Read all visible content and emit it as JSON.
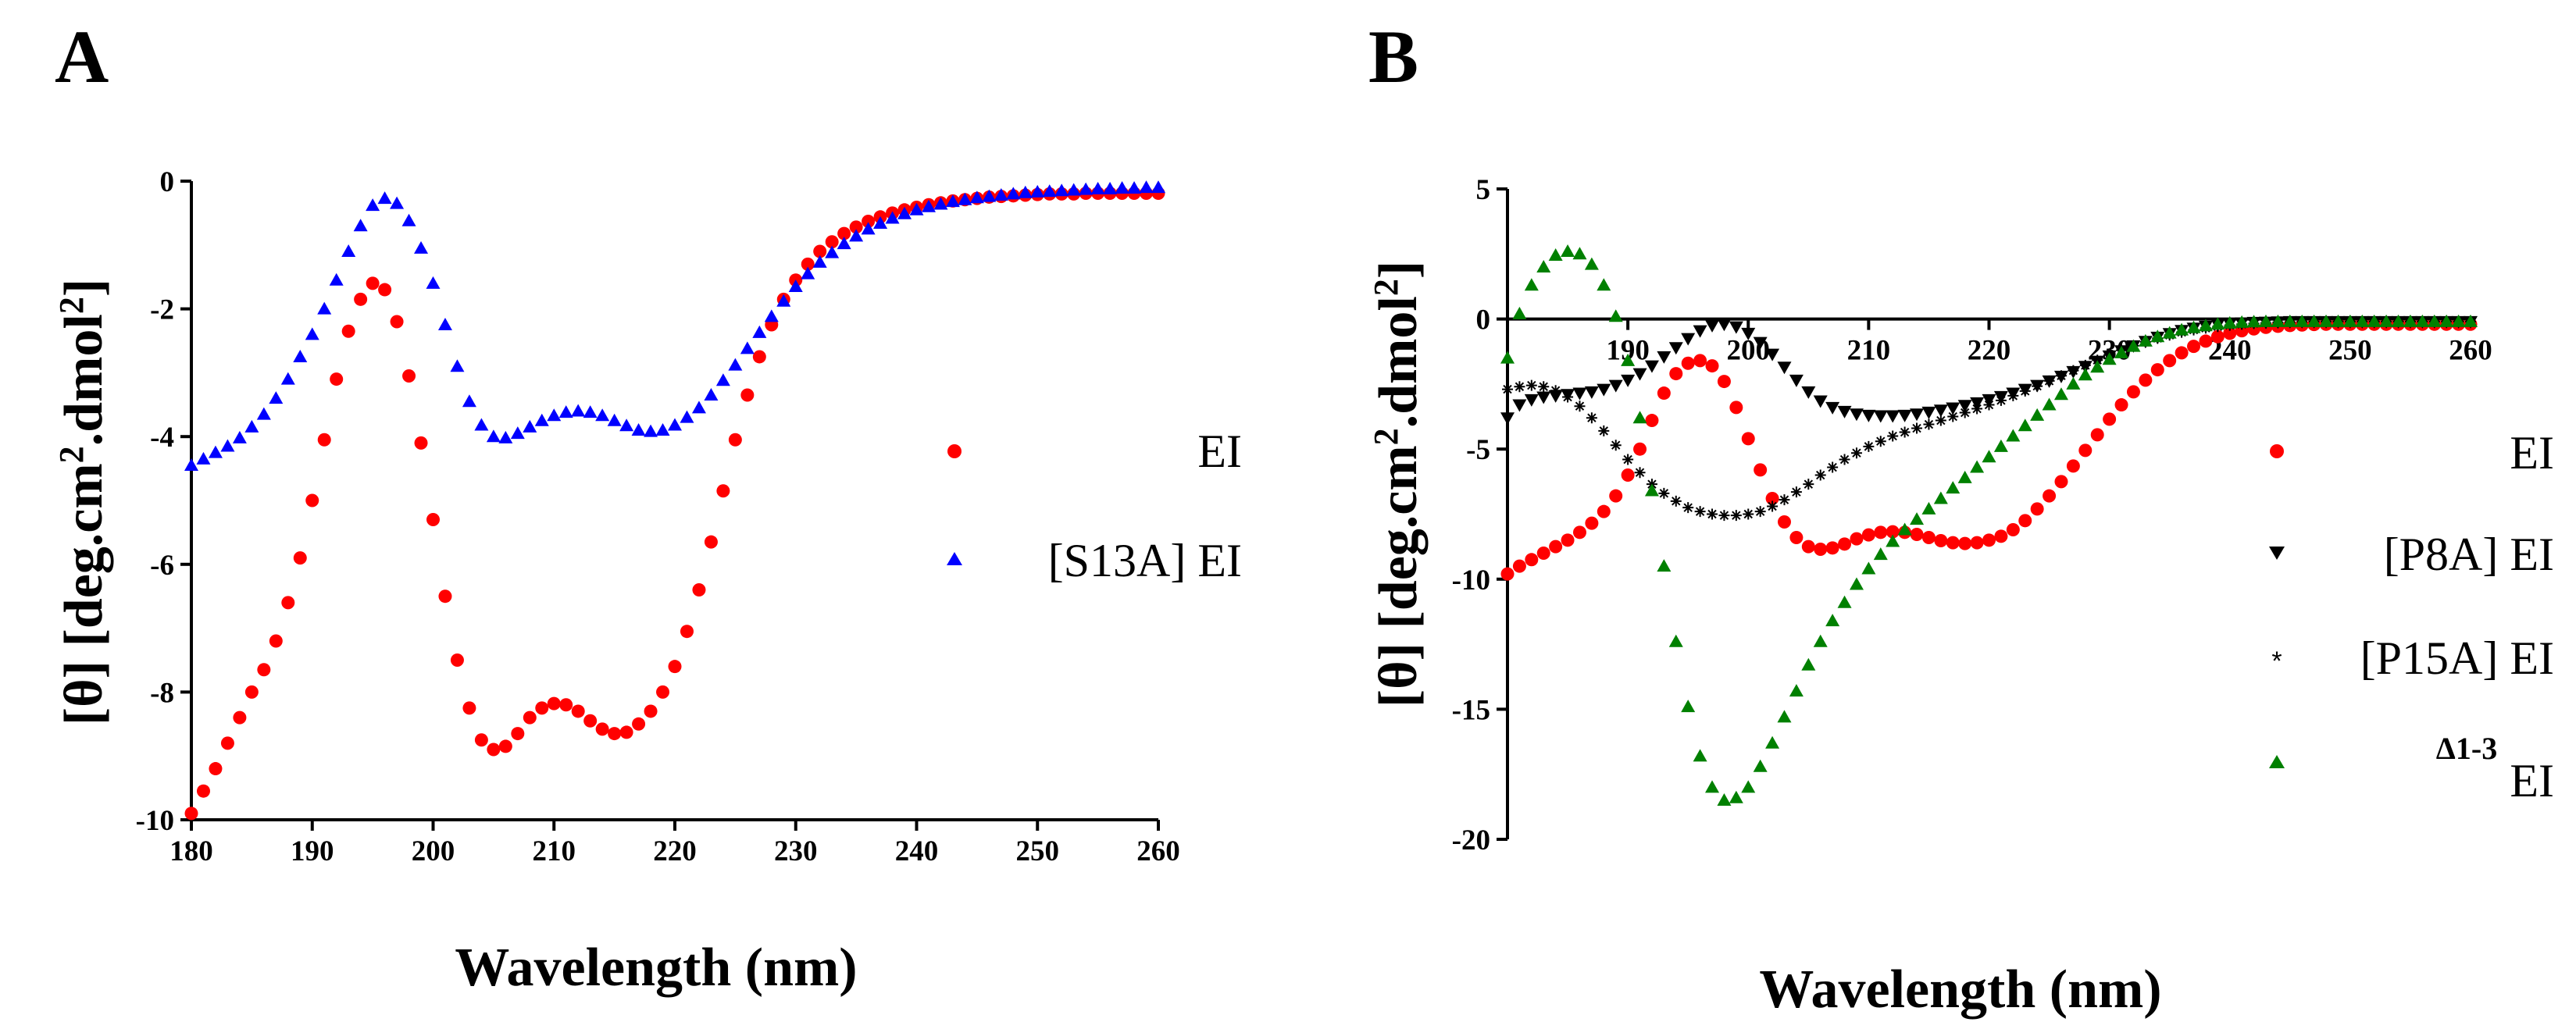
{
  "chart_data": [
    {
      "panel": "A",
      "type": "scatter",
      "xlabel": "Wavelength (nm)",
      "ylabel_parts": [
        "[θ] [deg.cm",
        "2",
        ".dmol",
        "2",
        "]"
      ],
      "xlim": [
        180,
        260
      ],
      "ylim": [
        -10,
        0
      ],
      "xticks": [
        "180",
        "190",
        "200",
        "210",
        "220",
        "230",
        "240",
        "250",
        "260"
      ],
      "xtick_values": [
        180,
        190,
        200,
        210,
        220,
        230,
        240,
        250,
        260
      ],
      "yticks": [
        "-10",
        "-8",
        "-6",
        "-4",
        "-2",
        "0"
      ],
      "ytick_values": [
        -10,
        -8,
        -6,
        -4,
        -2,
        0
      ],
      "series": [
        {
          "name": "EI",
          "marker": "circle",
          "color": "#ff0000",
          "x_start": 180,
          "x_step": 1,
          "values": [
            -9.9,
            -9.55,
            -9.2,
            -8.8,
            -8.4,
            -8.0,
            -7.65,
            -7.2,
            -6.6,
            -5.9,
            -5.0,
            -4.05,
            -3.1,
            -2.35,
            -1.85,
            -1.6,
            -1.7,
            -2.2,
            -3.05,
            -4.1,
            -5.3,
            -6.5,
            -7.5,
            -8.25,
            -8.75,
            -8.9,
            -8.85,
            -8.65,
            -8.4,
            -8.25,
            -8.18,
            -8.2,
            -8.3,
            -8.45,
            -8.58,
            -8.65,
            -8.63,
            -8.5,
            -8.3,
            -8.0,
            -7.6,
            -7.05,
            -6.4,
            -5.65,
            -4.85,
            -4.05,
            -3.35,
            -2.75,
            -2.25,
            -1.85,
            -1.55,
            -1.3,
            -1.1,
            -0.95,
            -0.82,
            -0.72,
            -0.63,
            -0.56,
            -0.5,
            -0.45,
            -0.41,
            -0.37,
            -0.34,
            -0.31,
            -0.29,
            -0.27,
            -0.25,
            -0.24,
            -0.23,
            -0.22,
            -0.21,
            -0.2,
            -0.2,
            -0.2,
            -0.19,
            -0.19,
            -0.19,
            -0.19,
            -0.19,
            -0.19,
            -0.19
          ]
        },
        {
          "name": "[S13A] EI",
          "marker": "triangle",
          "color": "#0000ff",
          "x_start": 180,
          "x_step": 1,
          "values": [
            -4.45,
            -4.35,
            -4.25,
            -4.15,
            -4.02,
            -3.85,
            -3.65,
            -3.4,
            -3.1,
            -2.75,
            -2.4,
            -2.0,
            -1.55,
            -1.1,
            -0.7,
            -0.38,
            -0.27,
            -0.35,
            -0.62,
            -1.05,
            -1.6,
            -2.25,
            -2.9,
            -3.45,
            -3.82,
            -4.0,
            -4.02,
            -3.95,
            -3.85,
            -3.75,
            -3.67,
            -3.62,
            -3.6,
            -3.62,
            -3.67,
            -3.75,
            -3.83,
            -3.9,
            -3.92,
            -3.9,
            -3.82,
            -3.7,
            -3.55,
            -3.35,
            -3.12,
            -2.88,
            -2.62,
            -2.37,
            -2.12,
            -1.88,
            -1.65,
            -1.45,
            -1.27,
            -1.12,
            -0.98,
            -0.86,
            -0.75,
            -0.66,
            -0.58,
            -0.51,
            -0.45,
            -0.4,
            -0.36,
            -0.32,
            -0.29,
            -0.26,
            -0.24,
            -0.22,
            -0.2,
            -0.18,
            -0.17,
            -0.16,
            -0.15,
            -0.14,
            -0.13,
            -0.12,
            -0.12,
            -0.11,
            -0.11,
            -0.1,
            -0.1
          ]
        }
      ]
    },
    {
      "panel": "B",
      "type": "scatter",
      "xlabel": "Wavelength (nm)",
      "ylabel_parts": [
        "[θ] [deg.cm",
        "2",
        ".dmol",
        "2",
        "]"
      ],
      "xlim": [
        180,
        260
      ],
      "ylim": [
        -20,
        5
      ],
      "xticks": [
        "190",
        "200",
        "210",
        "220",
        "230",
        "240",
        "250",
        "260"
      ],
      "xtick_values": [
        190,
        200,
        210,
        220,
        230,
        240,
        250,
        260
      ],
      "yticks": [
        "-20",
        "-15",
        "-10",
        "-5",
        "0",
        "5"
      ],
      "ytick_values": [
        -20,
        -15,
        -10,
        -5,
        0,
        5
      ],
      "series": [
        {
          "name": "EI",
          "marker": "circle",
          "color": "#ff0000",
          "x_start": 180,
          "x_step": 1,
          "values": [
            -9.8,
            -9.5,
            -9.25,
            -9.0,
            -8.75,
            -8.5,
            -8.2,
            -7.85,
            -7.4,
            -6.8,
            -6.0,
            -5.0,
            -3.9,
            -2.85,
            -2.1,
            -1.7,
            -1.6,
            -1.8,
            -2.4,
            -3.4,
            -4.6,
            -5.8,
            -6.9,
            -7.8,
            -8.4,
            -8.75,
            -8.85,
            -8.8,
            -8.65,
            -8.45,
            -8.3,
            -8.2,
            -8.18,
            -8.2,
            -8.28,
            -8.4,
            -8.52,
            -8.6,
            -8.63,
            -8.6,
            -8.5,
            -8.35,
            -8.1,
            -7.75,
            -7.3,
            -6.8,
            -6.25,
            -5.65,
            -5.05,
            -4.45,
            -3.85,
            -3.3,
            -2.8,
            -2.35,
            -1.95,
            -1.6,
            -1.3,
            -1.05,
            -0.85,
            -0.68,
            -0.55,
            -0.45,
            -0.38,
            -0.32,
            -0.28,
            -0.25,
            -0.23,
            -0.21,
            -0.2,
            -0.2,
            -0.2,
            -0.2,
            -0.2,
            -0.2,
            -0.2,
            -0.2,
            -0.2,
            -0.2,
            -0.2,
            -0.2,
            -0.2
          ]
        },
        {
          "name": "[P8A] EI",
          "marker": "triangle-down",
          "color": "#000000",
          "x_start": 180,
          "x_step": 1,
          "values": [
            -3.8,
            -3.3,
            -3.1,
            -3.0,
            -2.95,
            -2.9,
            -2.85,
            -2.8,
            -2.7,
            -2.55,
            -2.35,
            -2.1,
            -1.8,
            -1.45,
            -1.1,
            -0.75,
            -0.45,
            -0.25,
            -0.2,
            -0.3,
            -0.55,
            -0.9,
            -1.35,
            -1.85,
            -2.35,
            -2.8,
            -3.15,
            -3.4,
            -3.55,
            -3.65,
            -3.7,
            -3.72,
            -3.72,
            -3.7,
            -3.65,
            -3.58,
            -3.5,
            -3.42,
            -3.32,
            -3.22,
            -3.1,
            -2.98,
            -2.85,
            -2.7,
            -2.55,
            -2.38,
            -2.2,
            -2.02,
            -1.82,
            -1.62,
            -1.42,
            -1.22,
            -1.03,
            -0.86,
            -0.7,
            -0.56,
            -0.44,
            -0.35,
            -0.28,
            -0.22,
            -0.18,
            -0.15,
            -0.13,
            -0.12,
            -0.11,
            -0.1,
            -0.1,
            -0.1,
            -0.1,
            -0.1,
            -0.1,
            -0.1,
            -0.1,
            -0.1,
            -0.1,
            -0.1,
            -0.1,
            -0.1,
            -0.1,
            -0.1,
            -0.1
          ]
        },
        {
          "name": "[P15A] EI",
          "marker": "asterisk",
          "color": "#000000",
          "x_start": 180,
          "x_step": 1,
          "values": [
            -2.7,
            -2.6,
            -2.55,
            -2.6,
            -2.75,
            -3.0,
            -3.35,
            -3.8,
            -4.3,
            -4.85,
            -5.4,
            -5.9,
            -6.35,
            -6.7,
            -7.0,
            -7.25,
            -7.4,
            -7.5,
            -7.55,
            -7.55,
            -7.5,
            -7.4,
            -7.2,
            -6.95,
            -6.65,
            -6.35,
            -6.0,
            -5.7,
            -5.4,
            -5.15,
            -4.9,
            -4.7,
            -4.5,
            -4.35,
            -4.2,
            -4.05,
            -3.9,
            -3.75,
            -3.6,
            -3.45,
            -3.3,
            -3.13,
            -2.95,
            -2.77,
            -2.58,
            -2.38,
            -2.18,
            -1.98,
            -1.78,
            -1.58,
            -1.38,
            -1.2,
            -1.03,
            -0.88,
            -0.74,
            -0.62,
            -0.51,
            -0.42,
            -0.35,
            -0.29,
            -0.24,
            -0.2,
            -0.17,
            -0.15,
            -0.13,
            -0.12,
            -0.11,
            -0.1,
            -0.1,
            -0.1,
            -0.1,
            -0.1,
            -0.1,
            -0.1,
            -0.1,
            -0.1,
            -0.1,
            -0.1,
            -0.1,
            -0.1,
            -0.1
          ]
        },
        {
          "name": "Δ1-3 EI",
          "legend_super": "Δ1-3",
          "legend_main": "EI",
          "marker": "triangle",
          "color": "#008000",
          "x_start": 180,
          "x_step": 1,
          "values": [
            -1.5,
            0.2,
            1.3,
            2.0,
            2.45,
            2.6,
            2.5,
            2.1,
            1.3,
            0.1,
            -1.6,
            -3.8,
            -6.6,
            -9.5,
            -12.4,
            -14.9,
            -16.8,
            -18.0,
            -18.5,
            -18.4,
            -18.0,
            -17.2,
            -16.3,
            -15.3,
            -14.3,
            -13.3,
            -12.4,
            -11.6,
            -10.9,
            -10.2,
            -9.6,
            -9.05,
            -8.55,
            -8.1,
            -7.7,
            -7.3,
            -6.9,
            -6.5,
            -6.1,
            -5.7,
            -5.3,
            -4.9,
            -4.5,
            -4.1,
            -3.7,
            -3.3,
            -2.9,
            -2.5,
            -2.15,
            -1.85,
            -1.55,
            -1.3,
            -1.05,
            -0.85,
            -0.68,
            -0.54,
            -0.42,
            -0.33,
            -0.26,
            -0.2,
            -0.16,
            -0.13,
            -0.11,
            -0.1,
            -0.1,
            -0.1,
            -0.1,
            -0.1,
            -0.1,
            -0.1,
            -0.1,
            -0.1,
            -0.1,
            -0.1,
            -0.1,
            -0.1,
            -0.1,
            -0.1,
            -0.1,
            -0.1,
            -0.1
          ]
        }
      ]
    }
  ]
}
